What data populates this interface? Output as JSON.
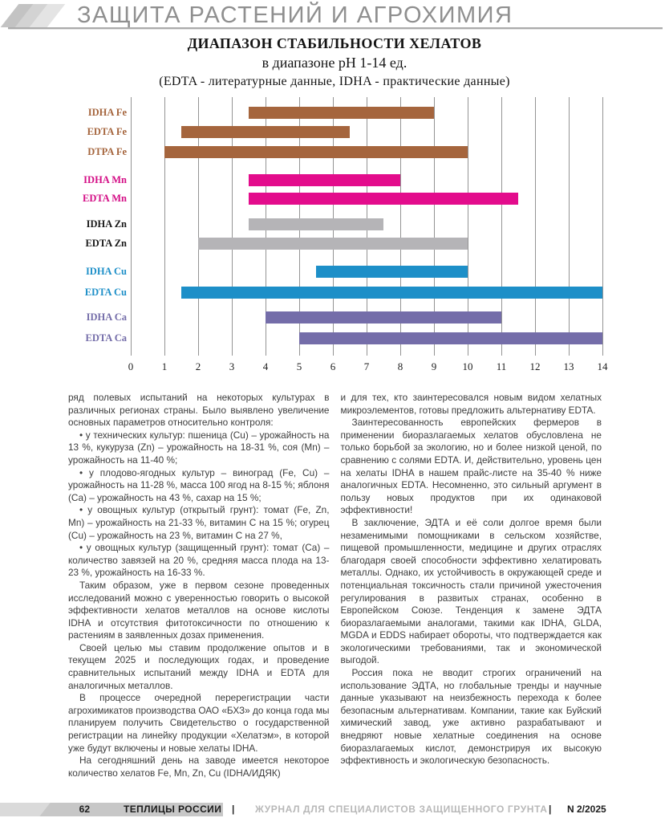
{
  "header": {
    "section_title": "ЗАЩИТА РАСТЕНИЙ И АГРОХИМИЯ"
  },
  "chart": {
    "title_line1": "ДИАПАЗОН СТАБИЛЬНОСТИ ХЕЛАТОВ",
    "title_line2": "в диапазоне pH 1-14 ед.",
    "title_line3": "(EDTA - литературные данные, IDHA - практические данные)"
  },
  "chart_data": {
    "type": "bar",
    "orientation": "horizontal",
    "title": "ДИАПАЗОН СТАБИЛЬНОСТИ ХЕЛАТОВ в диапазоне pH 1-14 ед. (EDTA - литературные данные, IDHA - практические данные)",
    "xlabel": "",
    "ylabel": "",
    "x_min": 0,
    "x_max": 14,
    "ticks": [
      0,
      1,
      2,
      3,
      4,
      5,
      6,
      7,
      8,
      9,
      10,
      11,
      12,
      13,
      14
    ],
    "grid": "vertical",
    "legend_position": "none",
    "series": [
      {
        "label": "IDHA Fe",
        "start": 3.5,
        "end": 9,
        "color": "#A5653D",
        "label_color": "#A5653D"
      },
      {
        "label": "EDTA Fe",
        "start": 1.5,
        "end": 6.5,
        "color": "#A5653D",
        "label_color": "#A5653D"
      },
      {
        "label": "DTPA Fe",
        "start": 1,
        "end": 10,
        "color": "#A5653D",
        "label_color": "#A5653D"
      },
      {
        "label": "IDHA Mn",
        "start": 3.5,
        "end": 8,
        "color": "#E30C8C",
        "label_color": "#D40E86"
      },
      {
        "label": "EDTA Mn",
        "start": 3.5,
        "end": 11.5,
        "color": "#E30C8C",
        "label_color": "#D40E86"
      },
      {
        "label": "IDHA Zn",
        "start": 3.5,
        "end": 7.5,
        "color": "#B5B4B7",
        "label_color": "#1A1A1A"
      },
      {
        "label": "EDTA Zn",
        "start": 2,
        "end": 10,
        "color": "#B5B4B7",
        "label_color": "#1A1A1A"
      },
      {
        "label": "IDHA Cu",
        "start": 5.5,
        "end": 10,
        "color": "#1D8FC8",
        "label_color": "#1D8FC8"
      },
      {
        "label": "EDTA Cu",
        "start": 1.5,
        "end": 14,
        "color": "#1D8FC8",
        "label_color": "#1D8FC8"
      },
      {
        "label": "IDHA Ca",
        "start": 4,
        "end": 11,
        "color": "#746DA9",
        "label_color": "#746DA9"
      },
      {
        "label": "EDTA Ca",
        "start": 5,
        "end": 14,
        "color": "#746DA9",
        "label_color": "#746DA9"
      }
    ]
  },
  "body": {
    "left_column": {
      "paragraphs": [
        {
          "indent": false,
          "text": "ряд полевых испытаний на некоторых культурах в различных регионах страны. Было выявлено увеличение основных параметров относительно контроля:"
        },
        {
          "indent": true,
          "text": "• у технических культур: пшеница (Cu) – урожайность на 13 %, кукуруза (Zn) – урожайность на 18-31 %, соя (Mn) – урожайность на 11-40 %;"
        },
        {
          "indent": true,
          "text": "• у плодово-ягодных культур – виноград (Fe, Cu) – урожайность на 11-28 %, масса 100 ягод на 8-15 %; яблоня (Ca) – урожайность на 43 %, сахар на 15 %;"
        },
        {
          "indent": true,
          "text": "• у овощных культур (открытый грунт): томат (Fe, Zn, Mn) – урожайность на 21-33 %, витамин C на 15 %; огурец (Cu) – урожайность на 23 %, витамин C на 27 %,"
        },
        {
          "indent": true,
          "text": "• у овощных культур (защищенный грунт): томат (Ca) – количество завязей на 20 %, средняя масса плода на 13-23 %, урожайность на 16-33 %."
        },
        {
          "indent": true,
          "text": "Таким образом, уже в первом сезоне проведенных исследований можно с уверенностью говорить о высокой эффективности хелатов металлов на основе кислоты IDHA и отсутствия фитотоксичности по отношению к растениям в заявленных дозах применения."
        },
        {
          "indent": true,
          "text": "Своей целью мы ставим продолжение опытов и в текущем 2025 и последующих годах, и проведение сравнительных испытаний между IDHA и EDTA для аналогичных металлов."
        },
        {
          "indent": true,
          "text": "В процессе очередной перерегистрации части агрохимикатов производства ОАО «БХЗ» до конца года мы планируем получить Свидетельство о государственной регистрации на линейку продукции «Хелатэм», в которой уже будут включены и новые хелаты IDHA."
        },
        {
          "indent": true,
          "text": "На сегодняшний день на заводе имеется некоторое количество хелатов Fe, Mn, Zn, Cu (IDHA/ИДЯК)"
        }
      ]
    },
    "right_column": {
      "paragraphs": [
        {
          "indent": false,
          "text": "и для тех, кто заинтересовался новым видом хелатных микроэлементов, готовы предложить альтернативу EDTA."
        },
        {
          "indent": true,
          "text": "Заинтересованность европейских фермеров в применении биоразлагаемых хелатов обусловлена не только борьбой за экологию, но и более низкой ценой, по сравнению с солями EDTA. И, действительно, уровень цен на хелаты IDHA в нашем прайс-листе на 35-40 % ниже аналогичных EDTA. Несомненно, это сильный аргумент в пользу новых продуктов при их одинаковой эффективности!"
        },
        {
          "indent": true,
          "text": "В заключение, ЭДТА и её соли долгое время были незаменимыми помощниками в сельском хозяйстве, пищевой промышленности, медицине и других отраслях благодаря своей способности эффективно хелатировать металлы. Однако, их устойчивость в окружающей среде и потенциальная токсичность стали причиной ужесточения регулирования в развитых странах, особенно в Европейском Союзе. Тенденция к замене ЭДТА биоразлагаемыми аналогами, такими как IDHA, GLDA, MGDA и EDDS набирает обороты, что подтверждается как экологическими требованиями, так и экономической выгодой."
        },
        {
          "indent": true,
          "text": "Россия пока не вводит строгих ограничений на использование ЭДТА, но глобальные тренды и научные данные указывают на неизбежность перехода к более безопасным альтернативам. Компании, такие как Буйский химический завод, уже активно разрабатывают и внедряют новые хелатные соединения на основе биоразлагаемых кислот, демонстрируя их высокую эффективность и экологическую безопасность."
        }
      ]
    }
  },
  "footer": {
    "page_number": "62",
    "brand": "ТЕПЛИЦЫ РОССИИ",
    "separator": "|",
    "subtitle": "ЖУРНАЛ ДЛЯ СПЕЦИАЛИСТОВ ЗАЩИЩЕННОГО ГРУНТА",
    "issue": "N 2/2025"
  }
}
